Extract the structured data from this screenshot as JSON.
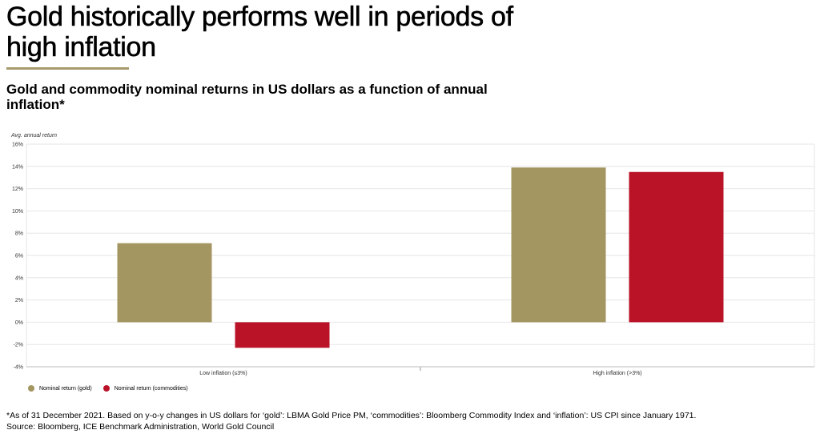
{
  "header": {
    "title": "Gold historically performs well in periods of high inflation",
    "subtitle": "Gold and commodity nominal returns in US dollars as a function of annual inflation*"
  },
  "colors": {
    "gold": "#a49660",
    "commodities": "#ba1327",
    "accent_rule": "#a8996a",
    "grid": "#e6e6e6"
  },
  "chart_data": {
    "type": "bar",
    "title": "Gold and commodity nominal returns in US dollars as a function of annual inflation*",
    "ylabel": "Avg. annual return",
    "xlabel": "",
    "categories": [
      "Low inflation (≤3%)",
      "High inflation (>3%)"
    ],
    "series": [
      {
        "name": "Nominal return (gold)",
        "values": [
          7.1,
          13.9
        ],
        "color": "#a49660"
      },
      {
        "name": "Nominal return (commodities)",
        "values": [
          -2.3,
          13.5
        ],
        "color": "#ba1327"
      }
    ],
    "ylim": [
      -4,
      16
    ],
    "yticks": [
      -4,
      -2,
      0,
      2,
      4,
      6,
      8,
      10,
      12,
      14,
      16
    ],
    "ytick_labels": [
      "-4%",
      "-2%",
      "0%",
      "2%",
      "4%",
      "6%",
      "8%",
      "10%",
      "12%",
      "14%",
      "16%"
    ],
    "grid": true,
    "legend_position": "bottom-left"
  },
  "footnote": {
    "note": "*As of 31 December 2021. Based on y-o-y changes in US dollars for ‘gold’: LBMA Gold Price PM, ‘commodities’: Bloomberg Commodity Index and ‘inflation’: US CPI since January 1971.",
    "source": "Source: Bloomberg, ICE Benchmark Administration, World Gold Council"
  }
}
